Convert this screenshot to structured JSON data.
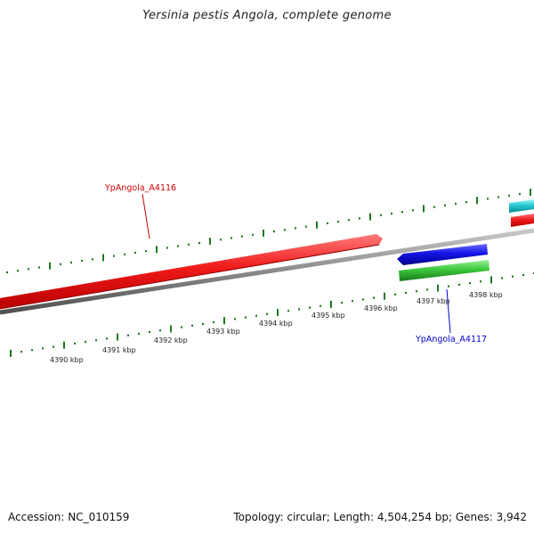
{
  "title": "Yersinia pestis Angola, complete genome",
  "footer": {
    "accession": "Accession: NC_010159",
    "summary": "Topology: circular; Length: 4,504,254 bp; Genes: 3,942"
  },
  "colors": {
    "backbone": "#8a8a8a",
    "tick": "#1e7a1e",
    "forward_gene": "#e8141e",
    "reverse_gene_blue": "#1414dc",
    "rna_green": "#3cc83c",
    "cyan_feature": "#28c8d0",
    "label_red": "#cc0000",
    "label_blue": "#0000cc"
  },
  "ruler": {
    "labels": [
      "4390 kbp",
      "4391 kbp",
      "4392 kbp",
      "4393 kbp",
      "4394 kbp",
      "4395 kbp",
      "4396 kbp",
      "4397 kbp",
      "4398 kbp"
    ]
  },
  "genes": [
    {
      "name": "YpAngola_A4116",
      "label": "YpAngola_A4116",
      "strand": "forward",
      "color": "#e8141e"
    },
    {
      "name": "YpAngola_A4117",
      "label": "YpAngola_A4117",
      "strand": "reverse",
      "color": "#1414dc"
    }
  ]
}
